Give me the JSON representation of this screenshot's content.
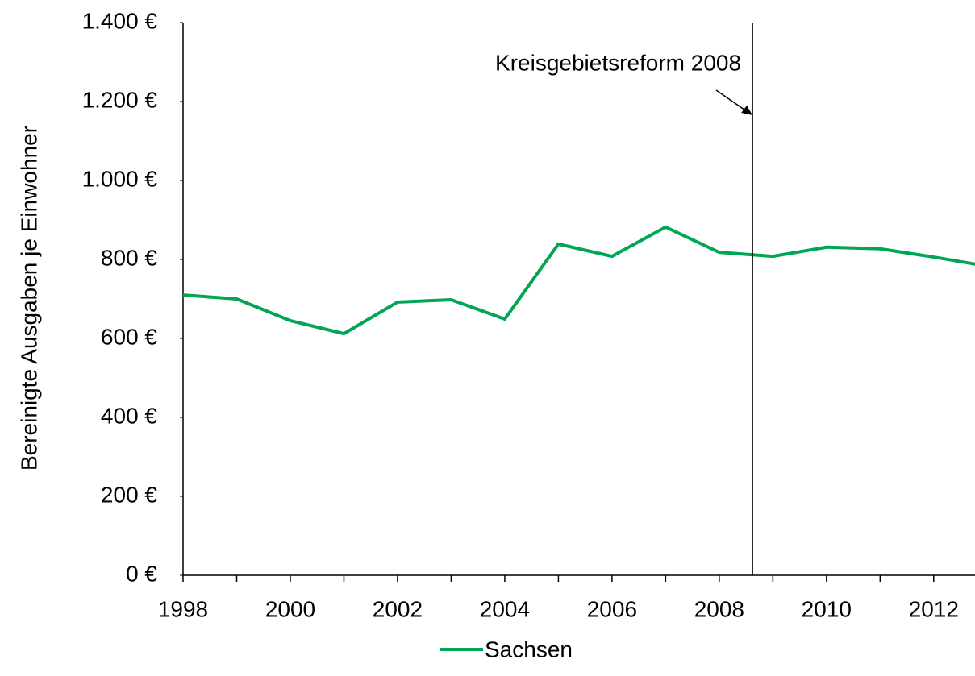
{
  "chart_data": {
    "type": "line",
    "y_label": "Bereinigte Ausgaben je Einwohner",
    "x": [
      1998,
      1999,
      2000,
      2001,
      2002,
      2003,
      2004,
      2005,
      2006,
      2007,
      2008,
      2009,
      2010,
      2011,
      2012,
      2013
    ],
    "series": [
      {
        "name": "Sachsen",
        "color": "#00a651",
        "values": [
          710,
          700,
          645,
          612,
          692,
          698,
          649,
          839,
          808,
          882,
          818,
          808,
          831,
          827,
          806,
          783
        ]
      }
    ],
    "xlim": [
      1998,
      2012.77
    ],
    "xticks": [
      1998,
      2000,
      2002,
      2004,
      2006,
      2008,
      2010,
      2012
    ],
    "ylim": [
      0,
      1400
    ],
    "yticks": [
      {
        "value": 0,
        "label": "0 €"
      },
      {
        "value": 200,
        "label": "200 €"
      },
      {
        "value": 400,
        "label": "400 €"
      },
      {
        "value": 600,
        "label": "600 €"
      },
      {
        "value": 800,
        "label": "800 €"
      },
      {
        "value": 1000,
        "label": "1.000 €"
      },
      {
        "value": 1200,
        "label": "1.200 €"
      },
      {
        "value": 1400,
        "label": "1.400 €"
      }
    ],
    "annotation": {
      "text": "Kreisgebietsreform 2008",
      "x": 2008.62
    },
    "legend": "bottom"
  }
}
